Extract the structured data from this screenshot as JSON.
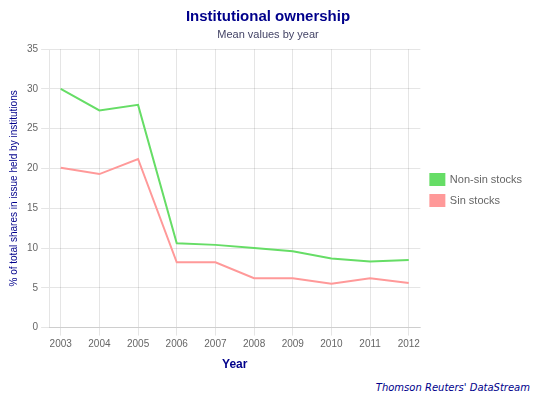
{
  "chart_data": {
    "type": "line",
    "title": "Institutional ownership",
    "subtitle": "Mean values by year",
    "x_label": "Year",
    "y_label": "% of total shares in issue held by institutions",
    "annotations": [
      "Thomson Reuters' DataStream"
    ],
    "x": [
      2003,
      2004,
      2005,
      2006,
      2007,
      2008,
      2009,
      2010,
      2011,
      2012
    ],
    "series": [
      {
        "name": "Non-sin stocks",
        "color": "#66dd66",
        "values": [
          30.0,
          27.3,
          28.0,
          10.6,
          10.4,
          10.0,
          9.6,
          8.7,
          8.3,
          8.5
        ]
      },
      {
        "name": "Sin stocks",
        "color": "#ff9999",
        "values": [
          20.1,
          19.3,
          21.2,
          8.2,
          8.2,
          6.2,
          6.2,
          5.5,
          6.2,
          5.6
        ]
      }
    ],
    "xlim": [
      2002.7,
      2012.3
    ],
    "xticks": [
      2003,
      2004,
      2005,
      2006,
      2007,
      2008,
      2009,
      2010,
      2011,
      2012
    ],
    "ylim": [
      0,
      35
    ],
    "yticks": [
      0,
      5,
      10,
      15,
      20,
      25,
      30,
      35
    ],
    "grid": true,
    "legend": "right"
  }
}
